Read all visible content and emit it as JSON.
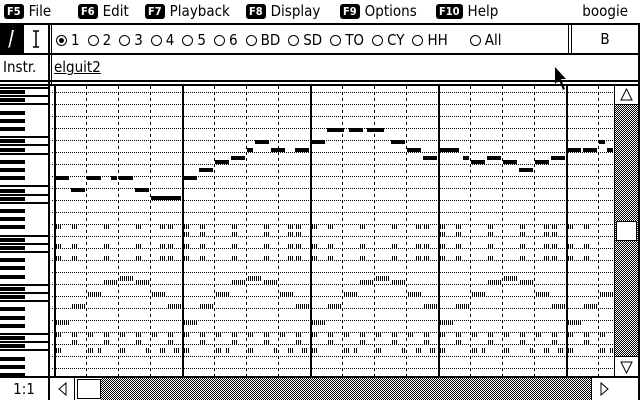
{
  "menu": [
    {
      "key": "F5",
      "label": "File"
    },
    {
      "key": "F6",
      "label": "Edit"
    },
    {
      "key": "F7",
      "label": "Playback"
    },
    {
      "key": "F8",
      "label": "Display"
    },
    {
      "key": "F9",
      "label": "Options"
    },
    {
      "key": "F10",
      "label": "Help"
    }
  ],
  "song_name": "boogie",
  "tools": {
    "pencil": "pencil-icon",
    "text": "text-cursor-icon"
  },
  "tracks": [
    {
      "label": "1",
      "selected": true
    },
    {
      "label": "2"
    },
    {
      "label": "3"
    },
    {
      "label": "4"
    },
    {
      "label": "5"
    },
    {
      "label": "6"
    },
    {
      "label": "BD"
    },
    {
      "label": "SD"
    },
    {
      "label": "TO"
    },
    {
      "label": "CY"
    },
    {
      "label": "HH"
    },
    {
      "label": "All"
    }
  ],
  "pattern_label": "B",
  "instrument": {
    "label": "Instr.",
    "value": "elguit2"
  },
  "position": "1:1",
  "melody": [
    [
      0,
      0.5,
      49
    ],
    [
      0.5,
      0.5,
      46
    ],
    [
      1,
      0.5,
      49
    ],
    [
      1.75,
      0.25,
      49
    ],
    [
      2,
      0.5,
      49
    ],
    [
      2.5,
      0.5,
      46
    ],
    [
      3,
      1,
      44
    ],
    [
      4,
      0.5,
      49
    ],
    [
      4.5,
      0.5,
      51
    ],
    [
      5,
      0.5,
      53
    ],
    [
      5.5,
      0.5,
      54
    ],
    [
      6,
      0.25,
      56
    ],
    [
      6.25,
      0.5,
      58
    ],
    [
      6.75,
      0.5,
      56
    ],
    [
      7.5,
      0.5,
      56
    ],
    [
      8,
      0.5,
      58
    ],
    [
      8.5,
      0.6,
      61
    ],
    [
      9.2,
      0.5,
      61
    ],
    [
      9.75,
      0.6,
      61
    ],
    [
      10.5,
      0.5,
      58
    ],
    [
      11,
      0.5,
      56
    ],
    [
      11.5,
      0.5,
      54
    ],
    [
      12,
      0.7,
      56
    ],
    [
      12.75,
      0.25,
      54
    ],
    [
      13,
      0.5,
      53
    ],
    [
      13.5,
      0.5,
      54
    ],
    [
      14,
      0.5,
      53
    ],
    [
      14.5,
      0.5,
      51
    ],
    [
      15,
      0.5,
      53
    ],
    [
      15.5,
      0.5,
      54
    ],
    [
      16,
      0.5,
      56
    ],
    [
      16.5,
      0.5,
      56
    ],
    [
      17,
      0.25,
      58
    ],
    [
      17.25,
      0.25,
      56
    ]
  ],
  "accompaniment": {
    "measures": 5,
    "tracks": [
      {
        "pitch": 37,
        "len": 0.2,
        "beats": [
          0,
          0.5,
          1.5,
          2.5,
          3.25,
          3.5
        ]
      },
      {
        "pitch": 35,
        "len": 0.2,
        "beats": [
          0,
          0.5,
          1.5,
          2.5,
          3.25,
          3.5
        ],
        "every_other": true
      },
      {
        "pitch": 32,
        "len": 0.2,
        "beats": [
          0,
          0.5,
          1.5,
          2.5,
          3.25,
          3.5
        ]
      },
      {
        "pitch": 29,
        "len": 0.2,
        "beats": [
          0,
          0.5,
          1.5,
          2.5,
          3.25,
          3.5
        ]
      },
      {
        "pitch": 23,
        "len": 0.45,
        "beats": [
          1.5,
          2.5
        ]
      },
      {
        "pitch": 24,
        "len": 0.45,
        "beats": [
          2
        ]
      },
      {
        "pitch": 20,
        "len": 0.45,
        "beats": [
          1,
          3
        ]
      },
      {
        "pitch": 17,
        "len": 0.45,
        "beats": [
          0.5,
          3.5
        ]
      },
      {
        "pitch": 13,
        "len": 0.45,
        "beats": [
          0
        ]
      },
      {
        "pitch": 10,
        "len": 0.15,
        "beats": [
          0,
          0.5,
          1,
          1.5,
          2,
          2.5,
          3,
          3.5
        ]
      },
      {
        "pitch": 8,
        "len": 0.15,
        "beats": [
          0.5,
          1.5,
          2.5,
          3.5
        ]
      },
      {
        "pitch": 6,
        "len": 0.15,
        "beats": [
          0,
          1,
          1.3,
          2,
          2.8,
          3.25,
          3.7
        ]
      }
    ]
  },
  "scroll": {
    "vertical_position": 0.5,
    "horizontal_position": 0
  }
}
